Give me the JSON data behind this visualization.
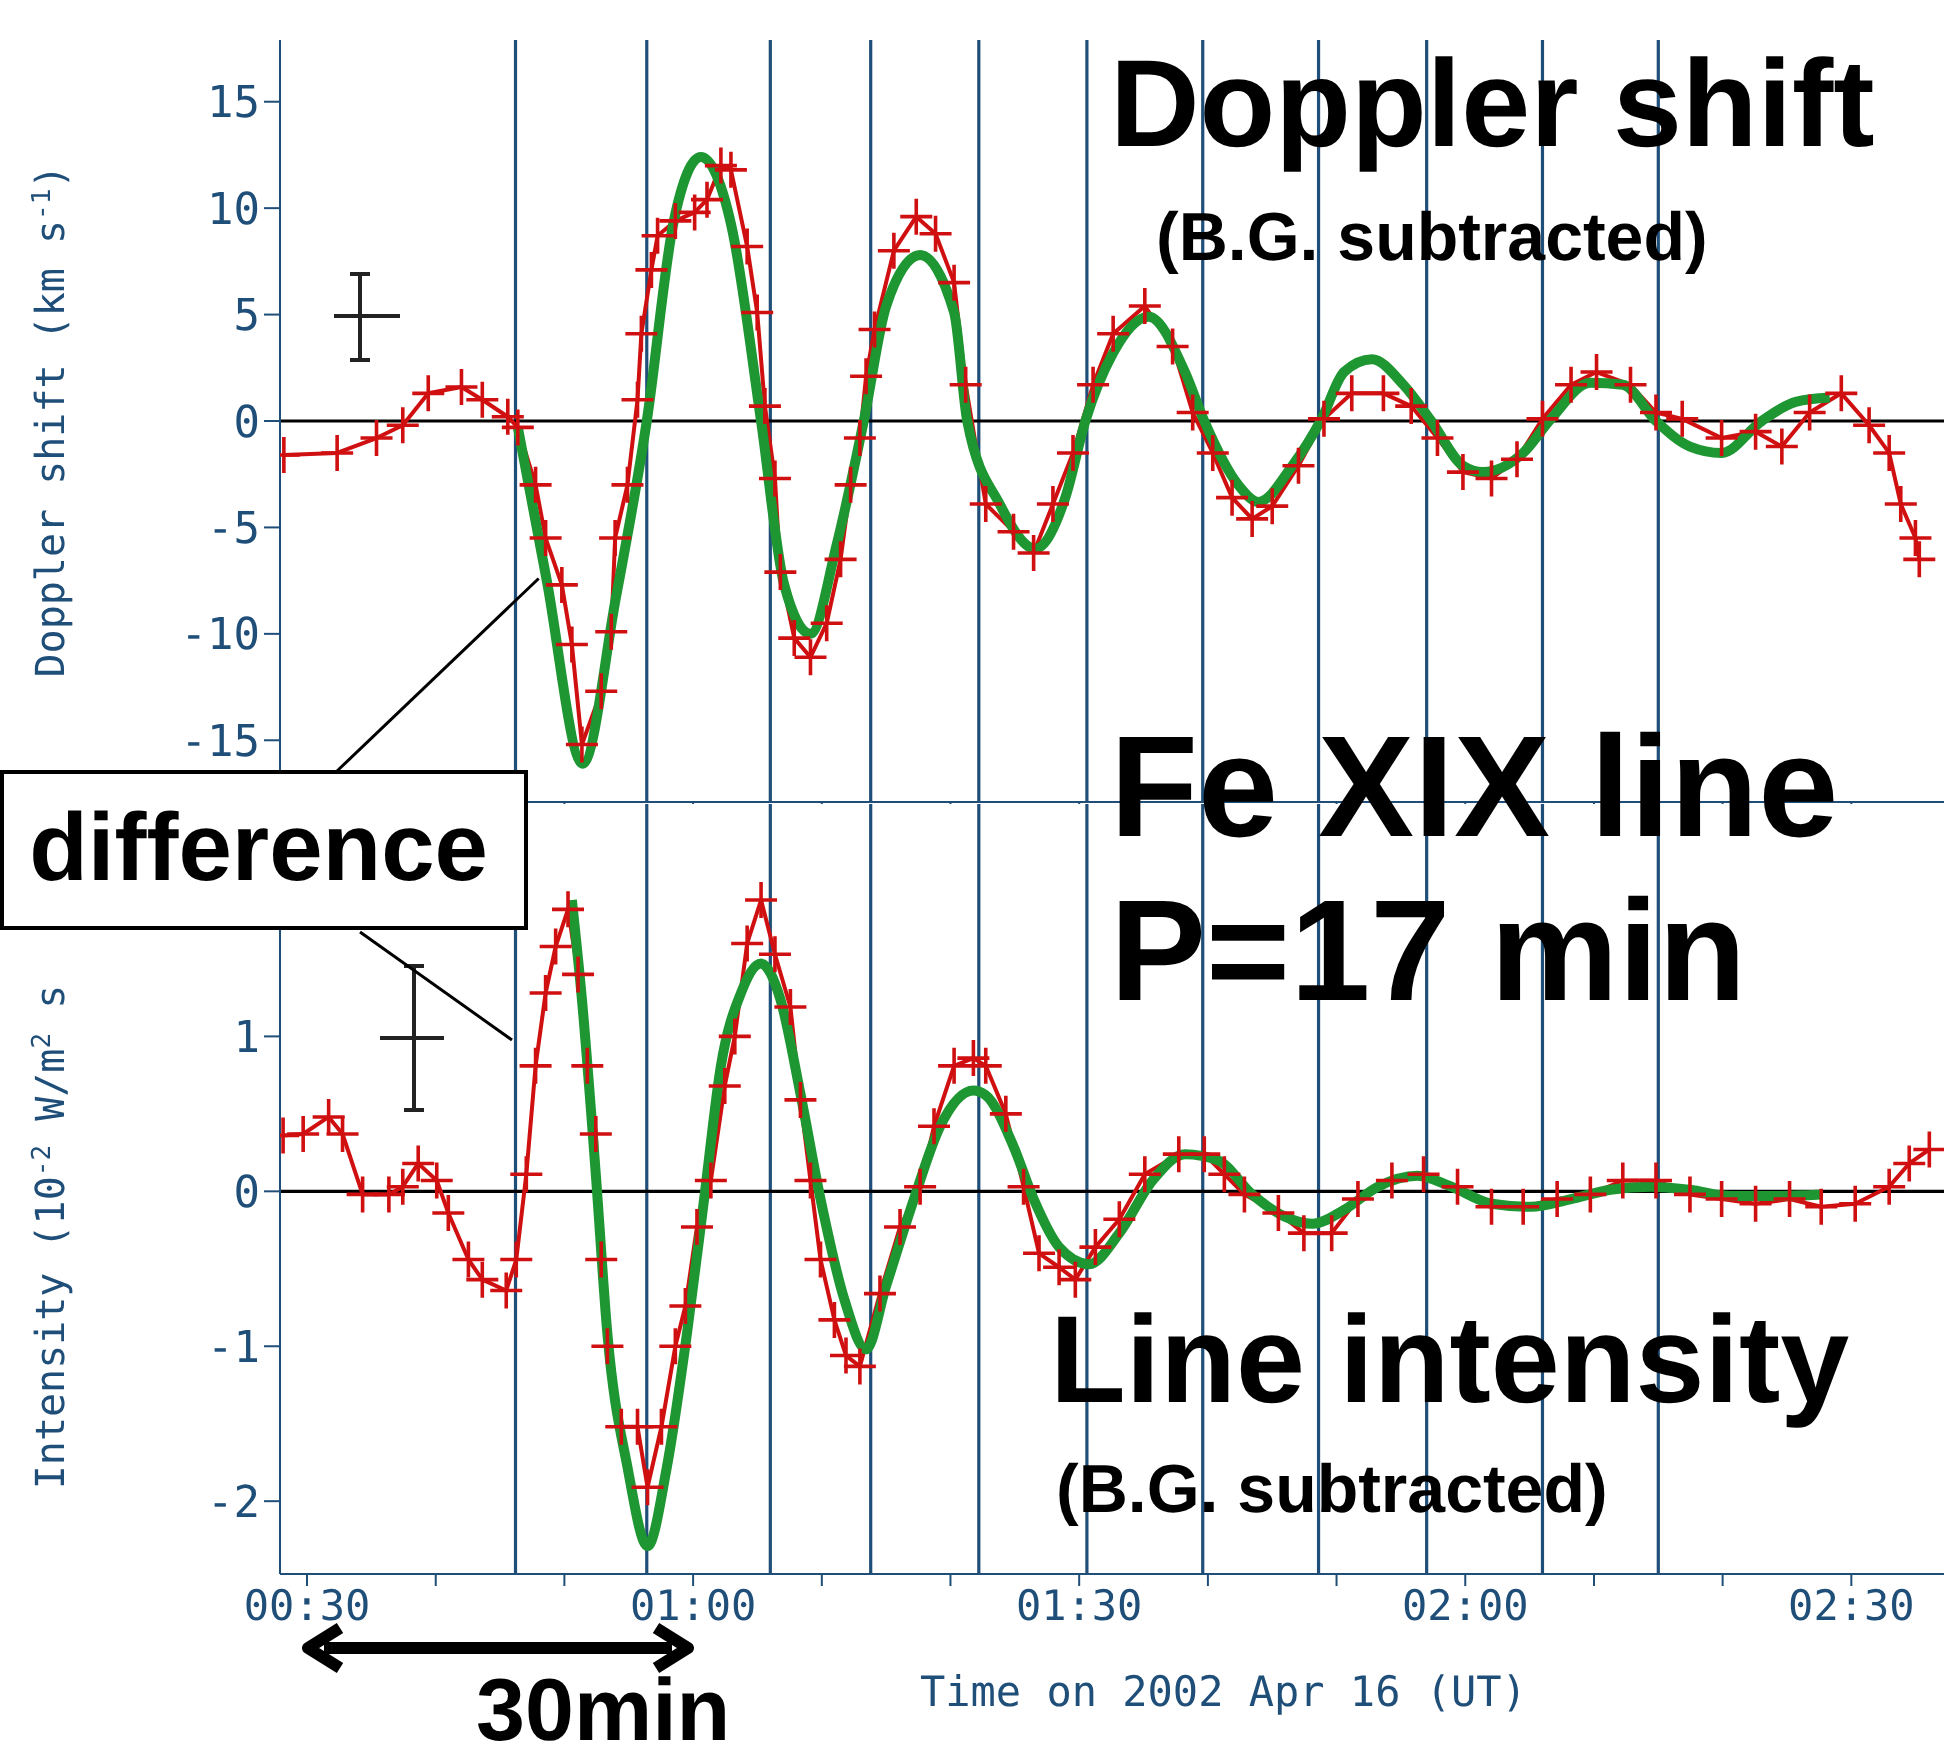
{
  "chart_data": [
    {
      "type": "line",
      "ylabel": "Doppler shift (km s$^{-1}$)",
      "xlim": [
        0.465,
        2.62
      ],
      "xticks": [
        {
          "value": 0.5,
          "label": null
        },
        {
          "value": 0.6667,
          "label": null
        },
        {
          "value": 0.8333,
          "label": null
        },
        {
          "value": 1,
          "label": null
        },
        {
          "value": 1.1667,
          "label": null
        },
        {
          "value": 1.3333,
          "label": null
        },
        {
          "value": 1.5,
          "label": null
        },
        {
          "value": 1.6667,
          "label": null
        },
        {
          "value": 1.8333,
          "label": null
        },
        {
          "value": 2,
          "label": null
        },
        {
          "value": 2.1667,
          "label": null
        },
        {
          "value": 2.3333,
          "label": null
        },
        {
          "value": 2.5,
          "label": null
        }
      ],
      "ylim": [
        -17.9,
        17.9
      ],
      "yticks": [
        -15,
        -10,
        -5,
        0,
        5,
        10,
        15
      ],
      "tick_labels": "y",
      "ref_lines": [
        {
          "axis": "x",
          "value": 0.77,
          "color": "#1f4e79"
        },
        {
          "axis": "x",
          "value": 0.94,
          "color": "#1f4e79"
        },
        {
          "axis": "x",
          "value": 1.1,
          "color": "#1f4e79"
        },
        {
          "axis": "x",
          "value": 1.23,
          "color": "#1f4e79"
        },
        {
          "axis": "x",
          "value": 1.37,
          "color": "#1f4e79"
        },
        {
          "axis": "x",
          "value": 1.51,
          "color": "#1f4e79"
        },
        {
          "axis": "x",
          "value": 1.66,
          "color": "#1f4e79"
        },
        {
          "axis": "x",
          "value": 1.81,
          "color": "#1f4e79"
        },
        {
          "axis": "x",
          "value": 1.95,
          "color": "#1f4e79"
        },
        {
          "axis": "x",
          "value": 2.1,
          "color": "#1f4e79"
        },
        {
          "axis": "x",
          "value": 2.25,
          "color": "#1f4e79"
        },
        {
          "axis": "y",
          "value": 0,
          "color": "#000000"
        }
      ],
      "series": [
        {
          "type": "line",
          "color": "#d01010",
          "marker": "cross",
          "x": [
            0.47,
            0.539,
            0.59,
            0.624,
            0.657,
            0.7,
            0.727,
            0.76,
            0.773,
            0.796,
            0.809,
            0.83,
            0.843,
            0.856,
            0.881,
            0.894,
            0.899,
            0.915,
            0.928,
            0.933,
            0.946,
            0.954,
            0.977,
            1.002,
            1.018,
            1.036,
            1.049,
            1.07,
            1.083,
            1.093,
            1.106,
            1.113,
            1.131,
            1.152,
            1.173,
            1.191,
            1.204,
            1.216,
            1.224,
            1.235,
            1.26,
            1.289,
            1.314,
            1.338,
            1.353,
            1.379,
            1.415,
            1.441,
            1.466,
            1.492,
            1.518,
            1.544,
            1.585,
            1.621,
            1.647,
            1.673,
            1.698,
            1.724,
            1.75,
            1.784,
            1.817,
            1.853,
            1.894,
            1.93,
            1.964,
            1.997,
            2.034,
            2.067,
            2.1,
            2.137,
            2.17,
            2.214,
            2.247,
            2.281,
            2.332,
            2.376,
            2.41,
            2.446,
            2.487,
            2.523,
            2.549,
            2.564,
            2.583,
            2.588
          ],
          "values": [
            -1.6,
            -1.5,
            -0.8,
            -0.2,
            1.3,
            1.6,
            1.0,
            0.2,
            -0.3,
            -3.0,
            -5.5,
            -7.7,
            -10.5,
            -15.2,
            -12.7,
            -9.9,
            -5.5,
            -3.0,
            1.0,
            4.1,
            7.1,
            8.7,
            9.4,
            9.8,
            10.4,
            12.0,
            11.8,
            8.2,
            5.1,
            0.7,
            -2.7,
            -7.1,
            -10.2,
            -11.1,
            -9.5,
            -6.5,
            -3.0,
            -0.8,
            2.1,
            4.3,
            8.0,
            9.6,
            8.8,
            6.5,
            1.7,
            -3.9,
            -5.2,
            -6.2,
            -3.9,
            -1.5,
            1.7,
            4.1,
            5.4,
            3.5,
            0.4,
            -1.5,
            -3.6,
            -4.6,
            -4.0,
            -2.1,
            0.1,
            1.3,
            1.3,
            0.7,
            -0.8,
            -2.4,
            -2.7,
            -1.8,
            0.1,
            1.7,
            2.3,
            1.7,
            0.4,
            0.1,
            -0.8,
            -0.5,
            -1.2,
            0.4,
            1.3,
            -0.2,
            -1.5,
            -3.9,
            -5.5,
            -6.5
          ]
        },
        {
          "type": "line",
          "color": "#1e9632",
          "marker": "none",
          "x": [
            0.773,
            0.81,
            0.857,
            0.9,
            0.94,
            0.975,
            1.01,
            1.05,
            1.088,
            1.118,
            1.152,
            1.186,
            1.221,
            1.25,
            1.294,
            1.338,
            1.355,
            1.397,
            1.443,
            1.482,
            1.508,
            1.544,
            1.59,
            1.637,
            1.662,
            1.706,
            1.732,
            1.776,
            1.814,
            1.843,
            1.879,
            1.92,
            1.956,
            1.997,
            2.023,
            2.075,
            2.111,
            2.162,
            2.204,
            2.247,
            2.291,
            2.332,
            2.384,
            2.428,
            2.472
          ],
          "values": [
            -0.3,
            -7.4,
            -16.1,
            -8.3,
            0,
            9.4,
            12.4,
            9.1,
            0,
            -7.7,
            -10.0,
            -5.8,
            0,
            5.4,
            7.8,
            5.1,
            0,
            -3.9,
            -6.0,
            -3.6,
            0,
            3.2,
            4.9,
            2.3,
            0,
            -3.0,
            -3.8,
            -2.1,
            0.1,
            2.3,
            2.9,
            1.7,
            0,
            -2.1,
            -2.4,
            -1.5,
            0.1,
            1.8,
            1.7,
            0,
            -1.2,
            -1.5,
            0,
            0.9,
            1.1
          ]
        }
      ],
      "annotations": [
        "Doppler shift",
        "(B.G. subtracted)",
        "Fe XIX line",
        {
          "text": "difference",
          "x": 0.8,
          "y": -7.4
        }
      ]
    },
    {
      "type": "line",
      "ylabel": "Intensity (10$^{-2}$ W/m$^{2}$ s",
      "xlabel": "Time on 2002 Apr 16 (UT)",
      "xlim": [
        0.465,
        2.62
      ],
      "xticks": [
        {
          "value": 0.5,
          "label": "00:30"
        },
        {
          "value": 0.6667,
          "label": null
        },
        {
          "value": 0.8333,
          "label": null
        },
        {
          "value": 1,
          "label": "01:00"
        },
        {
          "value": 1.1667,
          "label": null
        },
        {
          "value": 1.3333,
          "label": null
        },
        {
          "value": 1.5,
          "label": "01:30"
        },
        {
          "value": 1.6667,
          "label": null
        },
        {
          "value": 1.8333,
          "label": null
        },
        {
          "value": 2,
          "label": "02:00"
        },
        {
          "value": 2.1667,
          "label": null
        },
        {
          "value": 2.3333,
          "label": null
        },
        {
          "value": 2.5,
          "label": "02:30"
        }
      ],
      "ylim": [
        -2.47,
        2.5
      ],
      "yticks": [
        -2,
        -1,
        0,
        1
      ],
      "ref_lines": [
        {
          "axis": "x",
          "value": 0.77,
          "color": "#1f4e79"
        },
        {
          "axis": "x",
          "value": 0.94,
          "color": "#1f4e79"
        },
        {
          "axis": "x",
          "value": 1.1,
          "color": "#1f4e79"
        },
        {
          "axis": "x",
          "value": 1.23,
          "color": "#1f4e79"
        },
        {
          "axis": "x",
          "value": 1.37,
          "color": "#1f4e79"
        },
        {
          "axis": "x",
          "value": 1.51,
          "color": "#1f4e79"
        },
        {
          "axis": "x",
          "value": 1.66,
          "color": "#1f4e79"
        },
        {
          "axis": "x",
          "value": 1.81,
          "color": "#1f4e79"
        },
        {
          "axis": "x",
          "value": 1.95,
          "color": "#1f4e79"
        },
        {
          "axis": "x",
          "value": 2.1,
          "color": "#1f4e79"
        },
        {
          "axis": "x",
          "value": 2.25,
          "color": "#1f4e79"
        },
        {
          "axis": "y",
          "value": 0,
          "color": "#000000"
        }
      ],
      "series": [
        {
          "type": "line",
          "color": "#d01010",
          "marker": "cross",
          "x": [
            0.469,
            0.495,
            0.528,
            0.546,
            0.572,
            0.606,
            0.624,
            0.644,
            0.668,
            0.683,
            0.709,
            0.727,
            0.758,
            0.771,
            0.784,
            0.796,
            0.809,
            0.822,
            0.838,
            0.851,
            0.863,
            0.874,
            0.881,
            0.889,
            0.907,
            0.928,
            0.941,
            0.959,
            0.977,
            0.99,
            1.005,
            1.023,
            1.041,
            1.054,
            1.07,
            1.088,
            1.106,
            1.126,
            1.139,
            1.152,
            1.165,
            1.183,
            1.198,
            1.216,
            1.242,
            1.268,
            1.294,
            1.312,
            1.338,
            1.363,
            1.379,
            1.405,
            1.428,
            1.448,
            1.474,
            1.495,
            1.521,
            1.552,
            1.585,
            1.629,
            1.662,
            1.688,
            1.714,
            1.758,
            1.791,
            1.827,
            1.861,
            1.905,
            1.946,
            1.99,
            2.034,
            2.075,
            2.119,
            2.162,
            2.204,
            2.247,
            2.291,
            2.332,
            2.376,
            2.42,
            2.461,
            2.505,
            2.549,
            2.575,
            2.601
          ],
          "values": [
            0.36,
            0.37,
            0.48,
            0.37,
            -0.02,
            -0.02,
            0.03,
            0.18,
            0.07,
            -0.14,
            -0.44,
            -0.57,
            -0.64,
            -0.44,
            0.11,
            0.81,
            1.28,
            1.58,
            1.82,
            1.4,
            0.81,
            0.37,
            -0.44,
            -1.0,
            -1.52,
            -1.52,
            -1.91,
            -1.52,
            -1.0,
            -0.74,
            -0.23,
            0.07,
            0.68,
            1.0,
            1.6,
            1.88,
            1.53,
            1.19,
            0.59,
            0.07,
            -0.44,
            -0.83,
            -1.06,
            -1.13,
            -0.66,
            -0.23,
            0.03,
            0.42,
            0.81,
            0.86,
            0.81,
            0.5,
            0.03,
            -0.4,
            -0.49,
            -0.57,
            -0.36,
            -0.18,
            0.11,
            0.24,
            0.24,
            0.11,
            -0.02,
            -0.14,
            -0.27,
            -0.27,
            -0.05,
            0.07,
            0.11,
            0.03,
            -0.1,
            -0.1,
            -0.05,
            -0.02,
            0.07,
            0.07,
            -0.02,
            -0.05,
            -0.08,
            -0.05,
            -0.1,
            -0.08,
            0.03,
            0.18,
            0.27
          ]
        },
        {
          "type": "line",
          "color": "#1e9632",
          "marker": "none",
          "x": [
            0.843,
            0.856,
            0.874,
            0.889,
            0.915,
            0.941,
            0.966,
            0.992,
            1.015,
            1.036,
            1.062,
            1.088,
            1.113,
            1.139,
            1.165,
            1.196,
            1.224,
            1.25,
            1.286,
            1.32,
            1.363,
            1.379,
            1.415,
            1.441,
            1.474,
            1.513,
            1.552,
            1.595,
            1.637,
            1.68,
            1.724,
            1.765,
            1.802,
            1.843,
            1.887,
            1.938,
            1.982,
            2.034,
            2.085,
            2.137,
            2.188,
            2.24,
            2.291,
            2.343,
            2.402,
            2.461
          ],
          "values": [
            1.88,
            1.24,
            0.11,
            -0.92,
            -1.78,
            -2.29,
            -1.78,
            -0.92,
            -0.02,
            0.81,
            1.28,
            1.47,
            1.24,
            0.63,
            -0.05,
            -0.7,
            -1.02,
            -0.61,
            -0.05,
            0.42,
            0.65,
            0.62,
            0.29,
            -0.05,
            -0.36,
            -0.47,
            -0.27,
            0.07,
            0.24,
            0.2,
            -0.02,
            -0.16,
            -0.21,
            -0.12,
            0.03,
            0.1,
            0.03,
            -0.08,
            -0.1,
            -0.05,
            0.01,
            0.03,
            0.01,
            -0.03,
            -0.03,
            -0.02
          ]
        }
      ],
      "annotations": [
        "P=17 min",
        "Line intensity",
        "(B.G. subtracted)",
        "30min"
      ]
    }
  ]
}
